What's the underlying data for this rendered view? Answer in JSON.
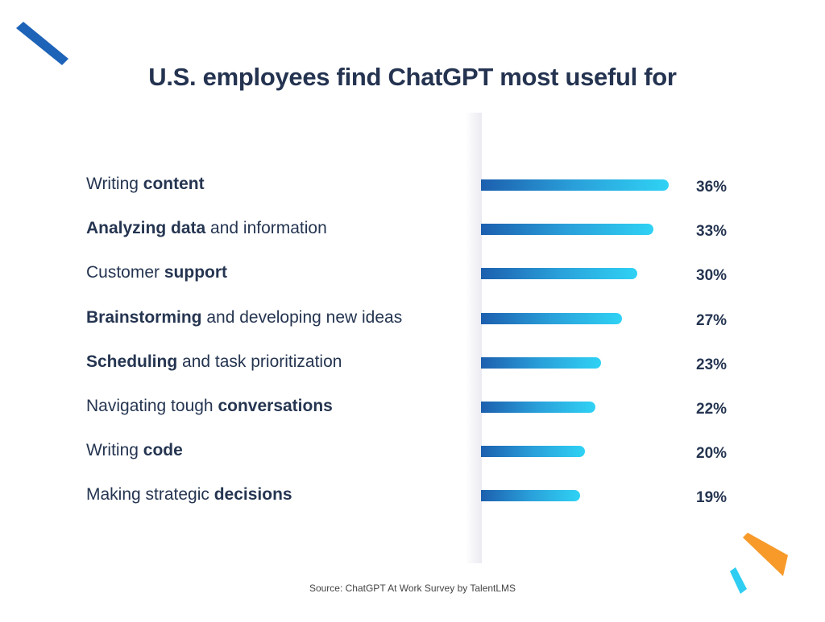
{
  "chart_data": {
    "type": "bar",
    "orientation": "horizontal",
    "title": "U.S. employees find ChatGPT most useful for",
    "categories": [
      [
        {
          "t": "Writing ",
          "b": false
        },
        {
          "t": "content",
          "b": true
        }
      ],
      [
        {
          "t": "Analyzing data",
          "b": true
        },
        {
          "t": " and information",
          "b": false
        }
      ],
      [
        {
          "t": "Customer ",
          "b": false
        },
        {
          "t": "support",
          "b": true
        }
      ],
      [
        {
          "t": "Brainstorming",
          "b": true
        },
        {
          "t": " and developing new ideas",
          "b": false
        }
      ],
      [
        {
          "t": "Scheduling",
          "b": true
        },
        {
          "t": " and task prioritization",
          "b": false
        }
      ],
      [
        {
          "t": "Navigating tough ",
          "b": false
        },
        {
          "t": "conversations",
          "b": true
        }
      ],
      [
        {
          "t": "Writing ",
          "b": false
        },
        {
          "t": "code",
          "b": true
        }
      ],
      [
        {
          "t": "Making strategic ",
          "b": false
        },
        {
          "t": "decisions",
          "b": true
        }
      ]
    ],
    "values": [
      36,
      33,
      30,
      27,
      23,
      22,
      20,
      19
    ],
    "value_labels": [
      "36%",
      "33%",
      "30%",
      "27%",
      "23%",
      "22%",
      "20%",
      "19%"
    ],
    "unit": "%",
    "grid": false,
    "colors": {
      "bar_start": "#1c5fae",
      "bar_end": "#2fd2f4",
      "text": "#253551"
    }
  },
  "source": "Source: ChatGPT At Work Survey by TalentLMS",
  "decorations": {
    "colors": [
      "#1d63b8",
      "#f79a2a",
      "#2fcdf2"
    ]
  }
}
